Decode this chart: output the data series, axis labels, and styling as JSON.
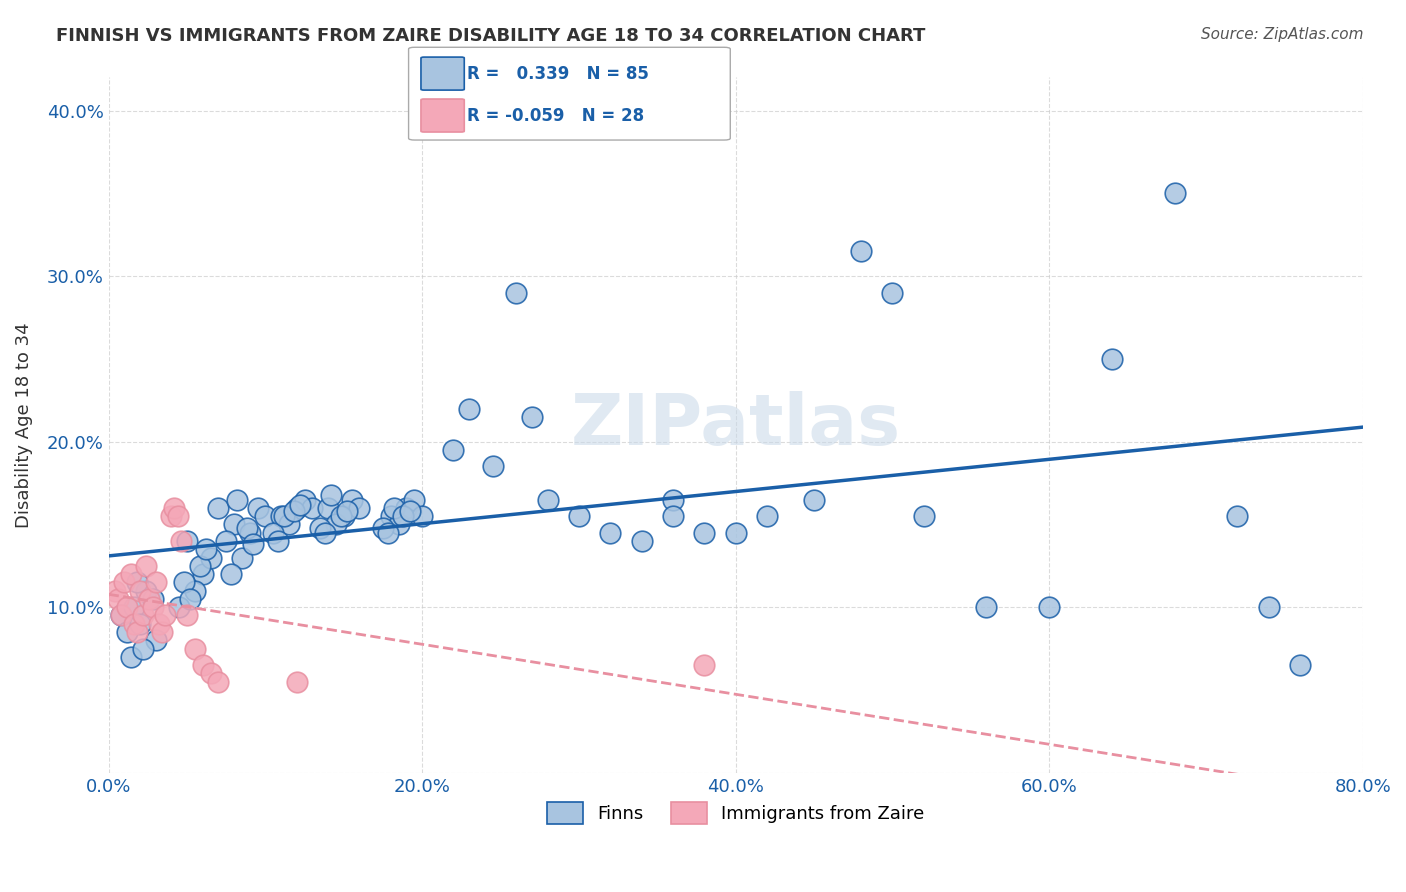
{
  "title": "FINNISH VS IMMIGRANTS FROM ZAIRE DISABILITY AGE 18 TO 34 CORRELATION CHART",
  "source": "Source: ZipAtlas.com",
  "xlabel": "",
  "ylabel": "Disability Age 18 to 34",
  "xlim": [
    0.0,
    0.8
  ],
  "ylim": [
    0.0,
    0.42
  ],
  "xticks": [
    0.0,
    0.2,
    0.4,
    0.6,
    0.8
  ],
  "yticks": [
    0.0,
    0.1,
    0.2,
    0.3,
    0.4
  ],
  "xtick_labels": [
    "0.0%",
    "20.0%",
    "40.0%",
    "60.0%",
    "80.0%"
  ],
  "ytick_labels": [
    "",
    "10.0%",
    "20.0%",
    "30.0%",
    "40.0%"
  ],
  "color_finns": "#a8c4e0",
  "color_zaire": "#f4a8b8",
  "color_finns_line": "#1a5fa8",
  "color_zaire_line": "#e88fa0",
  "watermark": "ZIPatlas",
  "legend_r_finns": " 0.339",
  "legend_n_finns": "85",
  "legend_r_zaire": "-0.059",
  "legend_n_zaire": "28",
  "finns_x": [
    0.024,
    0.008,
    0.012,
    0.016,
    0.02,
    0.028,
    0.03,
    0.014,
    0.018,
    0.022,
    0.05,
    0.06,
    0.065,
    0.055,
    0.07,
    0.045,
    0.048,
    0.052,
    0.058,
    0.062,
    0.08,
    0.09,
    0.095,
    0.085,
    0.1,
    0.075,
    0.078,
    0.082,
    0.088,
    0.092,
    0.11,
    0.12,
    0.125,
    0.115,
    0.13,
    0.105,
    0.108,
    0.112,
    0.118,
    0.122,
    0.14,
    0.15,
    0.155,
    0.145,
    0.16,
    0.135,
    0.138,
    0.142,
    0.148,
    0.152,
    0.18,
    0.19,
    0.195,
    0.185,
    0.2,
    0.175,
    0.178,
    0.182,
    0.188,
    0.192,
    0.22,
    0.23,
    0.245,
    0.26,
    0.27,
    0.28,
    0.3,
    0.32,
    0.34,
    0.36,
    0.4,
    0.42,
    0.45,
    0.48,
    0.5,
    0.52,
    0.56,
    0.6,
    0.64,
    0.68,
    0.72,
    0.74,
    0.76,
    0.36,
    0.38
  ],
  "finns_y": [
    0.11,
    0.095,
    0.085,
    0.1,
    0.09,
    0.105,
    0.08,
    0.07,
    0.115,
    0.075,
    0.14,
    0.12,
    0.13,
    0.11,
    0.16,
    0.1,
    0.115,
    0.105,
    0.125,
    0.135,
    0.15,
    0.145,
    0.16,
    0.13,
    0.155,
    0.14,
    0.12,
    0.165,
    0.148,
    0.138,
    0.155,
    0.16,
    0.165,
    0.15,
    0.16,
    0.145,
    0.14,
    0.155,
    0.158,
    0.162,
    0.16,
    0.155,
    0.165,
    0.15,
    0.16,
    0.148,
    0.145,
    0.168,
    0.155,
    0.158,
    0.155,
    0.16,
    0.165,
    0.15,
    0.155,
    0.148,
    0.145,
    0.16,
    0.155,
    0.158,
    0.195,
    0.22,
    0.185,
    0.29,
    0.215,
    0.165,
    0.155,
    0.145,
    0.14,
    0.165,
    0.145,
    0.155,
    0.165,
    0.315,
    0.29,
    0.155,
    0.1,
    0.1,
    0.25,
    0.35,
    0.155,
    0.1,
    0.065,
    0.155,
    0.145
  ],
  "zaire_x": [
    0.004,
    0.006,
    0.008,
    0.01,
    0.012,
    0.014,
    0.016,
    0.018,
    0.02,
    0.022,
    0.024,
    0.026,
    0.028,
    0.03,
    0.032,
    0.034,
    0.036,
    0.04,
    0.042,
    0.044,
    0.046,
    0.05,
    0.055,
    0.06,
    0.065,
    0.07,
    0.12,
    0.38
  ],
  "zaire_y": [
    0.11,
    0.105,
    0.095,
    0.115,
    0.1,
    0.12,
    0.09,
    0.085,
    0.11,
    0.095,
    0.125,
    0.105,
    0.1,
    0.115,
    0.09,
    0.085,
    0.095,
    0.155,
    0.16,
    0.155,
    0.14,
    0.095,
    0.075,
    0.065,
    0.06,
    0.055,
    0.055,
    0.065
  ]
}
